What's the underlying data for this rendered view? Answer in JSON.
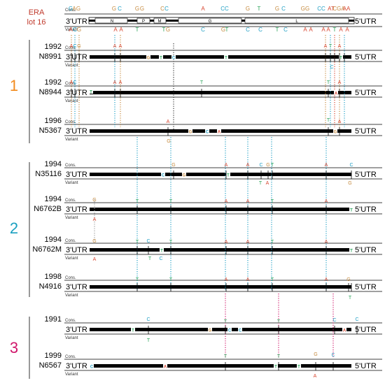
{
  "colors": {
    "A": "#d7452f",
    "C": "#1f9fc4",
    "G": "#c58a3e",
    "T": "#2aa45a",
    "group1": "#f28a1c",
    "group2": "#1ba0c0",
    "group3": "#d0156a",
    "title": "#c0392b",
    "genome": "#000000"
  },
  "header": {
    "title_line1": "ERA",
    "title_line2": "lot 16",
    "cons_label": "Cons.",
    "variant_label": "Variant",
    "utr_left": "3'UTR",
    "utr_right": "5'UTR",
    "genes": [
      "N",
      "P",
      "M",
      "G",
      "L"
    ],
    "cons_letters": [
      {
        "b": "G",
        "col": "#1f9fc4",
        "r": "GT"
      },
      {
        "b": "A",
        "col": "#c58a3e"
      },
      {
        "b": "G",
        "col": "#c58a3e"
      },
      {
        "b": "G",
        "col": "#c58a3e"
      },
      {
        "b": "C",
        "col": "#1f9fc4"
      },
      {
        "b": "G",
        "col": "#c58a3e"
      },
      {
        "b": "G",
        "col": "#c58a3e"
      },
      {
        "b": "C",
        "col": "#c58a3e"
      },
      {
        "b": "C",
        "col": "#1f9fc4"
      },
      {
        "b": "A",
        "col": "#d7452f"
      },
      {
        "b": "CC",
        "col": "#1f9fc4"
      },
      {
        "b": "G",
        "col": "#c58a3e"
      },
      {
        "b": "T",
        "col": "#2aa45a"
      },
      {
        "b": "G",
        "col": "#c58a3e"
      },
      {
        "b": "C",
        "col": "#1f9fc4"
      },
      {
        "b": "GG",
        "col": "#c58a3e"
      },
      {
        "b": "CC",
        "col": "#1f9fc4"
      },
      {
        "b": "AT",
        "col": "#d7452f"
      },
      {
        "b": "CGA",
        "col": "#c58a3e"
      },
      {
        "b": "AA",
        "col": "#d7452f"
      }
    ]
  },
  "groups": [
    {
      "number": "1"
    },
    {
      "number": "2"
    },
    {
      "number": "3"
    }
  ],
  "strains": [
    {
      "year": "1992",
      "id": "N8991"
    },
    {
      "year": "1992",
      "id": "N8944"
    },
    {
      "year": "1996",
      "id": "N5367"
    },
    {
      "year": "1994",
      "id": "N35116"
    },
    {
      "year": "1994",
      "id": "N6762B"
    },
    {
      "year": "1994",
      "id": "N6762M"
    },
    {
      "year": "1998",
      "id": "N4916"
    },
    {
      "year": "1991",
      "id": ""
    },
    {
      "year": "1999",
      "id": "N6567"
    }
  ],
  "rows": [
    {
      "cons": "Cons.",
      "variant": "Variant"
    },
    {
      "cons": "Cons.",
      "variant": "Variant"
    },
    {
      "cons": "Cons.",
      "variant": "Variant"
    },
    {
      "cons": "Cons.",
      "variant": "Variant"
    },
    {
      "cons": "Cons.",
      "variant": "Variant"
    },
    {
      "cons": "Cons.",
      "variant": "Variant"
    },
    {
      "cons": "Cons.",
      "variant": "Variant"
    },
    {
      "cons": "Cons.",
      "variant": "Variant"
    },
    {
      "cons": "Cons.",
      "variant": "Variant"
    }
  ]
}
